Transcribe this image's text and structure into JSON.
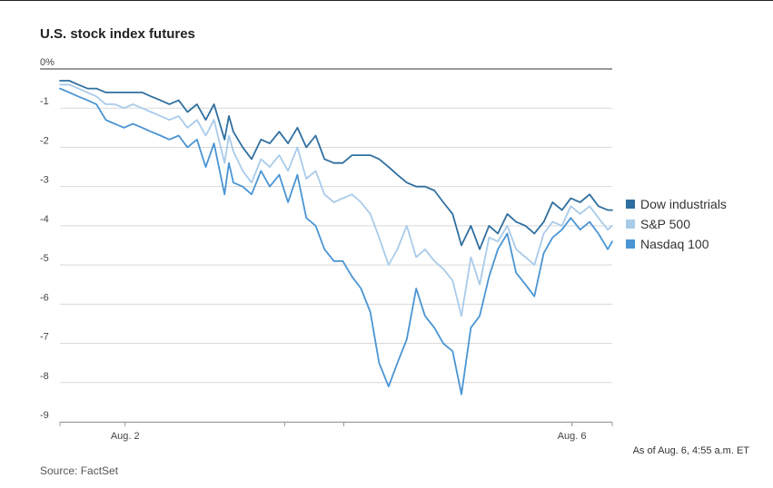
{
  "title": "U.S. stock index futures",
  "note": "As of Aug. 6, 4:55 a.m. ET",
  "source": "Source: FactSet",
  "colors": {
    "dow": "#2f6f9f",
    "sp": "#a9cbea",
    "nasdaq": "#4a95d4",
    "grid": "#d9d9d9",
    "zero": "#333333"
  },
  "chart_data": {
    "type": "line",
    "title": "U.S. stock index futures",
    "ylim": [
      -9,
      0
    ],
    "y_ticks": [
      0,
      -1,
      -2,
      -3,
      -4,
      -5,
      -6,
      -7,
      -8,
      -9
    ],
    "y_tick_labels": [
      "0%",
      "-1",
      "-2",
      "-3",
      "-4",
      "-5",
      "-6",
      "-7",
      "-8",
      "-9"
    ],
    "x_range": [
      0,
      100
    ],
    "x_tick_labels": [
      {
        "label": "Aug. 2",
        "x": 11.8
      },
      {
        "label": "Aug. 6",
        "x": 92.7
      }
    ],
    "x_minor_ticks": [
      0,
      40.7,
      51.4,
      92.7,
      100
    ],
    "legend_position": "right",
    "grid": true,
    "series": [
      {
        "name": "Dow industrials",
        "color": "#2f6f9f",
        "x": [
          0,
          1.7,
          3.3,
          5.0,
          6.6,
          8.3,
          9.9,
          11.6,
          13.2,
          14.9,
          16.5,
          18.2,
          19.8,
          21.5,
          23.1,
          24.8,
          26.4,
          27.9,
          29.8,
          30.6,
          31.4,
          33.1,
          34.7,
          36.4,
          38.0,
          39.7,
          41.3,
          43.0,
          44.6,
          46.3,
          47.9,
          49.6,
          51.2,
          52.9,
          54.5,
          56.2,
          57.8,
          59.5,
          61.1,
          62.8,
          64.5,
          66.1,
          67.8,
          69.4,
          71.1,
          72.7,
          74.4,
          76.0,
          77.7,
          79.3,
          81.0,
          82.6,
          84.3,
          85.9,
          87.6,
          89.2,
          90.9,
          92.5,
          94.2,
          95.9,
          97.5,
          99.2,
          100
        ],
        "values": [
          -0.3,
          -0.3,
          -0.4,
          -0.5,
          -0.5,
          -0.6,
          -0.6,
          -0.6,
          -0.6,
          -0.6,
          -0.7,
          -0.8,
          -0.9,
          -0.8,
          -1.1,
          -0.9,
          -1.3,
          -0.9,
          -1.8,
          -1.2,
          -1.6,
          -2.0,
          -2.3,
          -1.8,
          -1.9,
          -1.6,
          -1.9,
          -1.5,
          -2.0,
          -1.7,
          -2.3,
          -2.4,
          -2.4,
          -2.2,
          -2.2,
          -2.2,
          -2.3,
          -2.5,
          -2.7,
          -2.9,
          -3.0,
          -3.0,
          -3.1,
          -3.4,
          -3.7,
          -4.5,
          -4.0,
          -4.6,
          -4.0,
          -4.2,
          -3.7,
          -3.9,
          -4.0,
          -4.2,
          -3.9,
          -3.4,
          -3.6,
          -3.3,
          -3.4,
          -3.2,
          -3.5,
          -3.6,
          -3.6
        ]
      },
      {
        "name": "S&P 500",
        "color": "#a9cbea",
        "x": [
          0,
          1.7,
          3.3,
          5.0,
          6.6,
          8.3,
          9.9,
          11.6,
          13.2,
          14.9,
          16.5,
          18.2,
          19.8,
          21.5,
          23.1,
          24.8,
          26.4,
          27.9,
          29.8,
          30.6,
          31.4,
          33.1,
          34.7,
          36.4,
          38.0,
          39.7,
          41.3,
          43.0,
          44.6,
          46.3,
          47.9,
          49.6,
          51.2,
          52.9,
          54.5,
          56.2,
          57.8,
          59.5,
          61.1,
          62.8,
          64.5,
          66.1,
          67.8,
          69.4,
          71.1,
          72.7,
          74.4,
          76.0,
          77.7,
          79.3,
          81.0,
          82.6,
          84.3,
          85.9,
          87.6,
          89.2,
          90.9,
          92.5,
          94.2,
          95.9,
          97.5,
          99.2,
          100
        ],
        "values": [
          -0.4,
          -0.4,
          -0.5,
          -0.6,
          -0.7,
          -0.9,
          -0.9,
          -1.0,
          -0.9,
          -1.0,
          -1.1,
          -1.2,
          -1.3,
          -1.2,
          -1.5,
          -1.3,
          -1.7,
          -1.3,
          -2.4,
          -1.7,
          -2.1,
          -2.6,
          -2.9,
          -2.3,
          -2.5,
          -2.2,
          -2.6,
          -2.0,
          -2.8,
          -2.6,
          -3.2,
          -3.4,
          -3.3,
          -3.2,
          -3.4,
          -3.7,
          -4.3,
          -5.0,
          -4.6,
          -4.0,
          -4.8,
          -4.6,
          -4.9,
          -5.1,
          -5.4,
          -6.3,
          -4.8,
          -5.5,
          -4.3,
          -4.4,
          -4.0,
          -4.6,
          -4.8,
          -5.0,
          -4.2,
          -3.9,
          -4.0,
          -3.5,
          -3.7,
          -3.5,
          -3.8,
          -4.1,
          -4.0
        ]
      },
      {
        "name": "Nasdaq 100",
        "color": "#4a95d4",
        "x": [
          0,
          1.7,
          3.3,
          5.0,
          6.6,
          8.3,
          9.9,
          11.6,
          13.2,
          14.9,
          16.5,
          18.2,
          19.8,
          21.5,
          23.1,
          24.8,
          26.4,
          27.9,
          29.8,
          30.6,
          31.4,
          33.1,
          34.7,
          36.4,
          38.0,
          39.7,
          41.3,
          43.0,
          44.6,
          46.3,
          47.9,
          49.6,
          51.2,
          52.9,
          54.5,
          56.2,
          57.8,
          59.5,
          61.1,
          62.8,
          64.5,
          66.1,
          67.8,
          69.4,
          71.1,
          72.7,
          74.4,
          76.0,
          77.7,
          79.3,
          81.0,
          82.6,
          84.3,
          85.9,
          87.6,
          89.2,
          90.9,
          92.5,
          94.2,
          95.9,
          97.5,
          99.2,
          100
        ],
        "values": [
          -0.5,
          -0.6,
          -0.7,
          -0.8,
          -0.9,
          -1.3,
          -1.4,
          -1.5,
          -1.4,
          -1.5,
          -1.6,
          -1.7,
          -1.8,
          -1.7,
          -2.0,
          -1.8,
          -2.5,
          -1.9,
          -3.2,
          -2.4,
          -2.9,
          -3.0,
          -3.2,
          -2.6,
          -3.0,
          -2.7,
          -3.4,
          -2.7,
          -3.8,
          -4.0,
          -4.6,
          -4.9,
          -4.9,
          -5.3,
          -5.6,
          -6.2,
          -7.5,
          -8.1,
          -7.5,
          -6.9,
          -5.6,
          -6.3,
          -6.6,
          -7.0,
          -7.2,
          -8.3,
          -6.6,
          -6.3,
          -5.3,
          -4.6,
          -4.2,
          -5.2,
          -5.5,
          -5.8,
          -4.7,
          -4.3,
          -4.1,
          -3.8,
          -4.1,
          -3.9,
          -4.2,
          -4.6,
          -4.4
        ]
      }
    ]
  }
}
